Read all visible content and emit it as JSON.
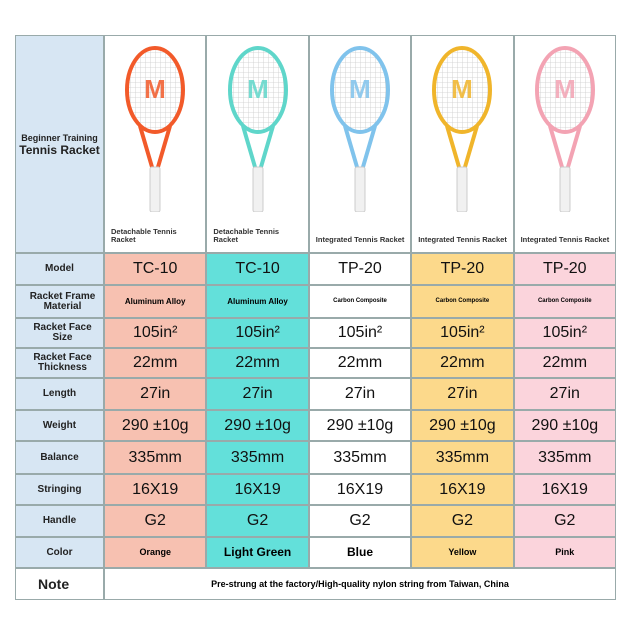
{
  "header": {
    "title": [
      "Beginner Training",
      "Tennis Racket"
    ]
  },
  "row_labels": [
    "Model",
    "Racket Frame Material",
    "Racket Face Size",
    "Racket Face Thickness",
    "Length",
    "Weight",
    "Balance",
    "Stringing",
    "Handle",
    "Color",
    "Note"
  ],
  "products": [
    {
      "caption": "Detachable Tennis Racket",
      "model": "TC-10",
      "material": "Aluminum Alloy",
      "face_size": "105in²",
      "thickness": "22mm",
      "length": "27in",
      "weight": "290 ±10g",
      "balance": "335mm",
      "stringing": "16X19",
      "handle": "G2",
      "color": "Orange"
    },
    {
      "caption": "Detachable Tennis Racket",
      "model": "TC-10",
      "material": "Aluminum Alloy",
      "face_size": "105in²",
      "thickness": "22mm",
      "length": "27in",
      "weight": "290 ±10g",
      "balance": "335mm",
      "stringing": "16X19",
      "handle": "G2",
      "color": "Light Green"
    },
    {
      "caption": "Integrated Tennis Racket",
      "model": "TP-20",
      "material": "Carbon Composite",
      "face_size": "105in²",
      "thickness": "22mm",
      "length": "27in",
      "weight": "290 ±10g",
      "balance": "335mm",
      "stringing": "16X19",
      "handle": "G2",
      "color": "Blue"
    },
    {
      "caption": "Integrated Tennis Racket",
      "model": "TP-20",
      "material": "Carbon Composite",
      "face_size": "105in²",
      "thickness": "22mm",
      "length": "27in",
      "weight": "290 ±10g",
      "balance": "335mm",
      "stringing": "16X19",
      "handle": "G2",
      "color": "Yellow"
    },
    {
      "caption": "Integrated Tennis Racket",
      "model": "TP-20",
      "material": "Carbon Composite",
      "face_size": "105in²",
      "thickness": "22mm",
      "length": "27in",
      "weight": "290 ±10g",
      "balance": "335mm",
      "stringing": "16X19",
      "handle": "G2",
      "color": "Pink"
    }
  ],
  "note": "Pre-strung at the factory/High-quality nylon string from Taiwan, China"
}
